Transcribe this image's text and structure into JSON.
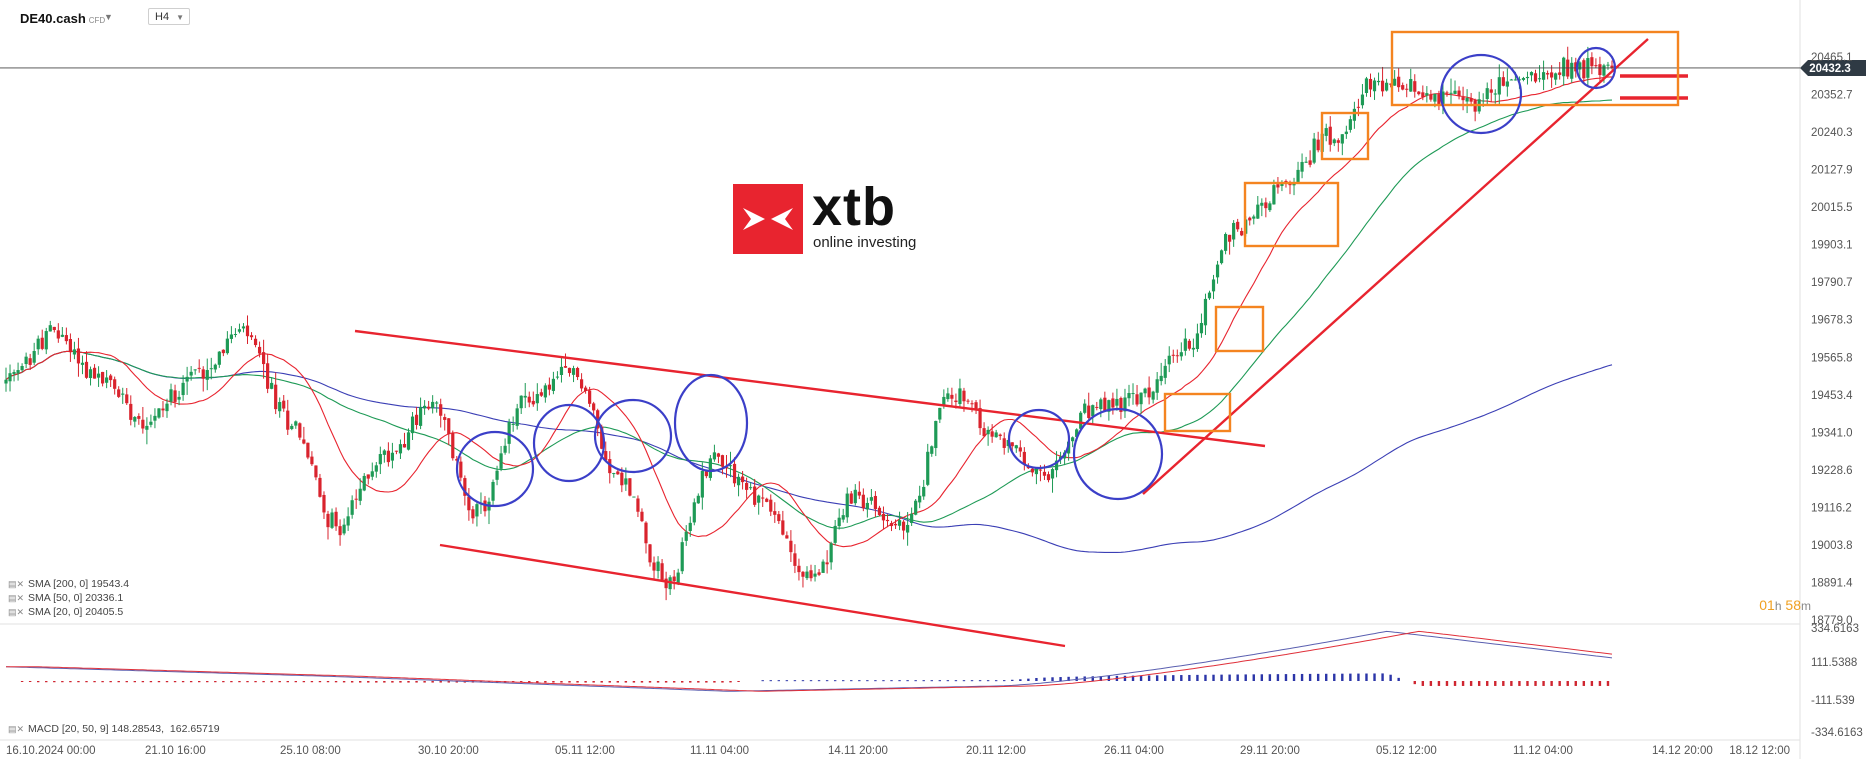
{
  "toolbar": {
    "symbol": "DE40.cash",
    "symbol_type": "CFD",
    "timeframe": "H4"
  },
  "logo": {
    "name": "xtb",
    "tagline": "online investing"
  },
  "indicators": [
    {
      "label": "SMA [200,  0]",
      "value": "19543.4",
      "color": "#3b3fb5"
    },
    {
      "label": "SMA [50,  0]",
      "value": "20336.1",
      "color": "#1e9a56"
    },
    {
      "label": "SMA [20,  0]",
      "value": "20405.5",
      "color": "#e8242f"
    }
  ],
  "macd_label": "MACD [20, 50, 9]",
  "macd_values": [
    "148.28543",
    "162.65719"
  ],
  "countdown": {
    "hours": "01",
    "h_unit": "h",
    "minutes": "58",
    "m_unit": "m"
  },
  "current_price_label": "20432.3",
  "chart_data": {
    "type": "candlestick",
    "timeframe": "H4",
    "y_axis_ticks": [
      "20465.1",
      "20352.7",
      "20240.3",
      "20127.9",
      "20015.5",
      "19903.1",
      "19790.7",
      "19678.3",
      "19565.8",
      "19453.4",
      "19341.0",
      "19228.6",
      "19116.2",
      "19003.8",
      "18891.4",
      "18779.0"
    ],
    "x_axis_ticks": [
      "16.10.2024  00:00",
      "21.10  16:00",
      "25.10  08:00",
      "30.10  20:00",
      "05.11  12:00",
      "11.11  04:00",
      "14.11  20:00",
      "20.11  12:00",
      "26.11  04:00",
      "29.11  20:00",
      "05.12  12:00",
      "11.12  04:00",
      "14.12  20:00",
      "18.12  12:00"
    ],
    "macd_axis_ticks": [
      "334.6163",
      "111.5388",
      "-111.539",
      "-334.6163"
    ],
    "current_price": 20432.3,
    "ylim": [
      18779.0,
      20465.1
    ],
    "key_points": [
      {
        "x": "16.10.2024 00:00",
        "close": 19490
      },
      {
        "x": "18.10",
        "close": 19640
      },
      {
        "x": "21.10 16:00",
        "close": 19500
      },
      {
        "x": "23.10",
        "close": 19380
      },
      {
        "x": "25.10 08:00",
        "close": 19520
      },
      {
        "x": "28.10",
        "close": 19640
      },
      {
        "x": "29.10",
        "close": 19380
      },
      {
        "x": "30.10 20:00",
        "close": 19060
      },
      {
        "x": "01.11",
        "close": 19270
      },
      {
        "x": "05.11 12:00",
        "close": 19420
      },
      {
        "x": "07.11",
        "close": 19100
      },
      {
        "x": "08.11",
        "close": 19440
      },
      {
        "x": "11.11 04:00",
        "close": 19520
      },
      {
        "x": "12.11",
        "close": 19200
      },
      {
        "x": "13.11",
        "close": 18890
      },
      {
        "x": "14.11 20:00",
        "close": 19270
      },
      {
        "x": "18.11",
        "close": 19140
      },
      {
        "x": "19.11",
        "close": 18900
      },
      {
        "x": "20.11 12:00",
        "close": 19150
      },
      {
        "x": "21.11",
        "close": 19050
      },
      {
        "x": "22.11",
        "close": 19460
      },
      {
        "x": "25.11",
        "close": 19320
      },
      {
        "x": "26.11 04:00",
        "close": 19200
      },
      {
        "x": "27.11",
        "close": 19410
      },
      {
        "x": "28.11",
        "close": 19440
      },
      {
        "x": "29.11 20:00",
        "close": 19600
      },
      {
        "x": "02.12",
        "close": 19950
      },
      {
        "x": "03.12",
        "close": 20070
      },
      {
        "x": "04.12",
        "close": 20230
      },
      {
        "x": "05.12 12:00",
        "close": 20380
      },
      {
        "x": "09.12",
        "close": 20360
      },
      {
        "x": "10.12",
        "close": 20330
      },
      {
        "x": "11.12 04:00",
        "close": 20400
      },
      {
        "x": "12.12",
        "close": 20440
      },
      {
        "x": "13.12",
        "close": 20432.3
      }
    ],
    "sma200_end": 19543.4,
    "sma50_end": 20336.1,
    "sma20_end": 20405.5,
    "grid": false
  }
}
